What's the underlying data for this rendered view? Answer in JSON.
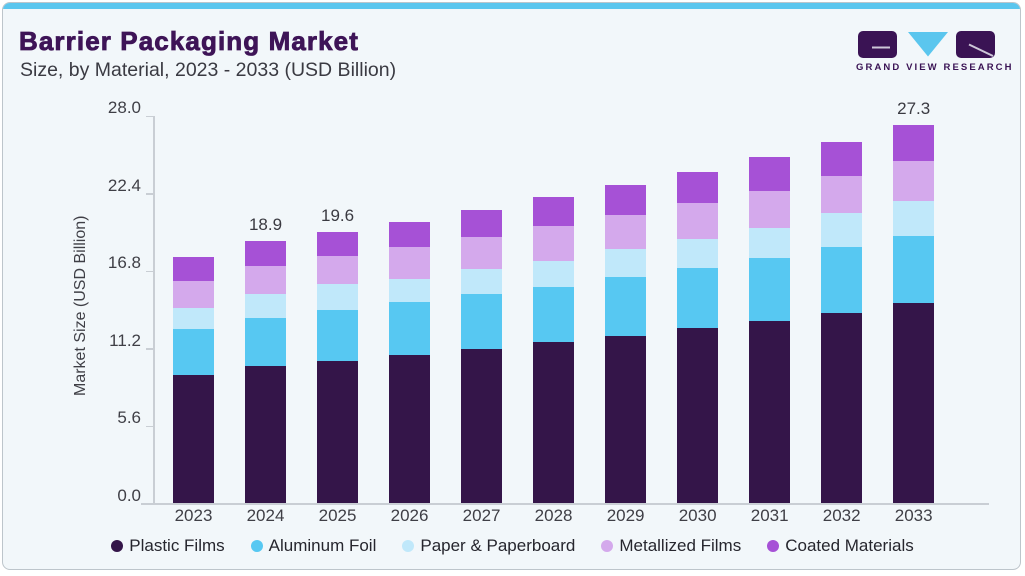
{
  "header": {
    "title": "Barrier Packaging Market",
    "subtitle": "Size, by Material, 2023 - 2033 (USD Billion)"
  },
  "logo": {
    "brand": "GRAND VIEW RESEARCH",
    "purple": "#3a1354",
    "blue": "#5bc6ee"
  },
  "chart_data": {
    "type": "bar",
    "stacked": true,
    "title": "Barrier Packaging Market",
    "subtitle": "Size, by Material, 2023 - 2033 (USD Billion)",
    "ylabel": "Market Size (USD Billion)",
    "xlabel": "",
    "ylim": [
      0,
      28
    ],
    "yticks": [
      "0.0",
      "5.6",
      "11.2",
      "16.8",
      "22.4",
      "28.0"
    ],
    "grid": false,
    "legend_position": "bottom",
    "categories": [
      "2023",
      "2024",
      "2025",
      "2026",
      "2027",
      "2028",
      "2029",
      "2030",
      "2031",
      "2032",
      "2033"
    ],
    "series": [
      {
        "name": "Plastic Films",
        "color": "#341549",
        "values": [
          9.28,
          9.93,
          10.27,
          10.68,
          11.11,
          11.62,
          12.11,
          12.64,
          13.14,
          13.74,
          14.43
        ]
      },
      {
        "name": "Aluminum Foil",
        "color": "#57c8f2",
        "values": [
          3.3,
          3.45,
          3.67,
          3.84,
          4.01,
          3.98,
          4.22,
          4.32,
          4.54,
          4.78,
          4.87
        ]
      },
      {
        "name": "Paper & Paperboard",
        "color": "#c0e8fa",
        "values": [
          1.52,
          1.74,
          1.88,
          1.69,
          1.81,
          1.89,
          2.05,
          2.14,
          2.22,
          2.42,
          2.53
        ]
      },
      {
        "name": "Metallized Films",
        "color": "#d4a9ec",
        "values": [
          1.96,
          2.05,
          2.01,
          2.29,
          2.29,
          2.53,
          2.44,
          2.56,
          2.68,
          2.68,
          2.88
        ]
      },
      {
        "name": "Coated Materials",
        "color": "#a651d6",
        "values": [
          1.74,
          1.74,
          1.73,
          1.83,
          1.94,
          2.08,
          2.17,
          2.27,
          2.44,
          2.46,
          2.6
        ]
      }
    ],
    "totals_shown": [
      {
        "category": "2024",
        "label": "18.9"
      },
      {
        "category": "2025",
        "label": "19.6"
      },
      {
        "category": "2033",
        "label": "27.3"
      }
    ]
  }
}
